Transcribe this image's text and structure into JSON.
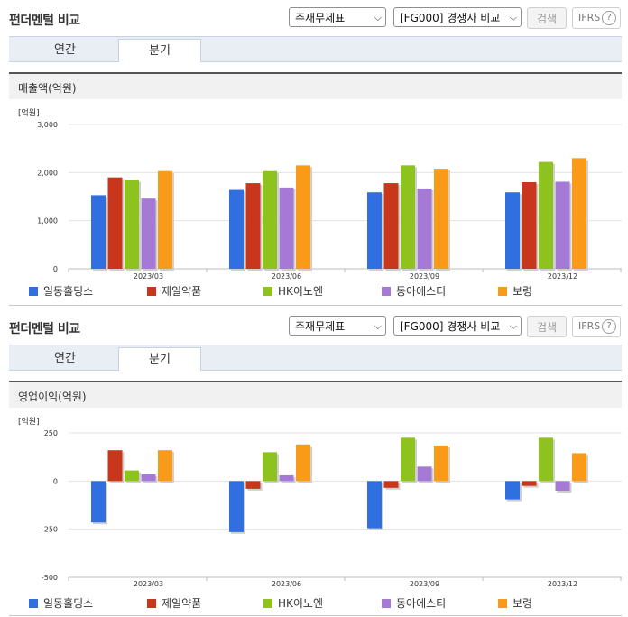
{
  "header": {
    "title": "펀더멘털 비교",
    "statement_select": "주재무제표",
    "compare_select": "[FG000] 경쟁사 비교",
    "search_label": "검색",
    "ifrs_label": "IFRS",
    "help_glyph": "?"
  },
  "tabs": [
    {
      "label": "연간",
      "active": false
    },
    {
      "label": "분기",
      "active": true
    }
  ],
  "colors": {
    "일동홀딩스": "#2f6fe0",
    "제일약품": "#c8371c",
    "HK이노엔": "#8ec21f",
    "동아에스티": "#a57ad6",
    "보령": "#f99b18"
  },
  "chart_data": [
    {
      "type": "bar",
      "title": "매출액(억원)",
      "unit_label": "[억원]",
      "categories": [
        "2023/03",
        "2023/06",
        "2023/09",
        "2023/12"
      ],
      "ylim": [
        0,
        3000
      ],
      "yticks": [
        0,
        1000,
        2000,
        3000
      ],
      "ytick_labels": [
        "0",
        "1,000",
        "2,000",
        "3,000"
      ],
      "grid": true,
      "legend_position": "bottom",
      "series": [
        {
          "name": "일동홀딩스",
          "values": [
            1530,
            1640,
            1590,
            1590
          ]
        },
        {
          "name": "제일약품",
          "values": [
            1900,
            1780,
            1780,
            1800
          ]
        },
        {
          "name": "HK이노엔",
          "values": [
            1850,
            2030,
            2150,
            2220
          ]
        },
        {
          "name": "동아에스티",
          "values": [
            1460,
            1690,
            1670,
            1810
          ]
        },
        {
          "name": "보령",
          "values": [
            2030,
            2150,
            2080,
            2300
          ]
        }
      ]
    },
    {
      "type": "bar",
      "title": "영업이익(억원)",
      "unit_label": "[억원]",
      "categories": [
        "2023/03",
        "2023/06",
        "2023/09",
        "2023/12"
      ],
      "ylim": [
        -500,
        250
      ],
      "yticks": [
        250,
        0,
        -250,
        -500
      ],
      "ytick_labels": [
        "250",
        "0",
        "-250",
        "-500"
      ],
      "grid": true,
      "legend_position": "bottom",
      "series": [
        {
          "name": "일동홀딩스",
          "values": [
            -215,
            -265,
            -245,
            -95
          ]
        },
        {
          "name": "제일약품",
          "values": [
            160,
            -40,
            -35,
            -25
          ]
        },
        {
          "name": "HK이노엔",
          "values": [
            55,
            150,
            225,
            225
          ]
        },
        {
          "name": "동아에스티",
          "values": [
            35,
            30,
            75,
            -50
          ]
        },
        {
          "name": "보령",
          "values": [
            160,
            190,
            185,
            145
          ]
        }
      ]
    }
  ]
}
